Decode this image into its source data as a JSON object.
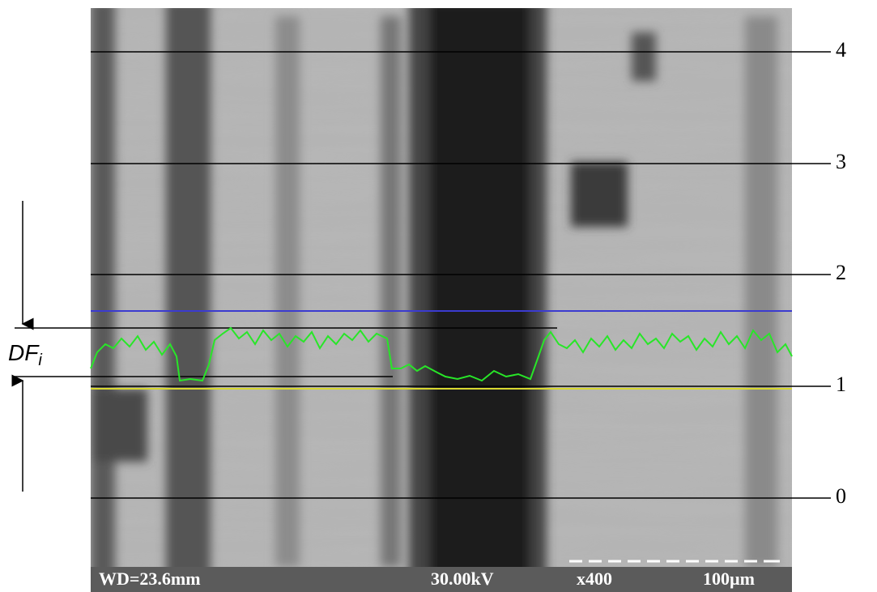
{
  "annotations": {
    "level_labels": [
      "0",
      "1",
      "2",
      "3",
      "4"
    ],
    "symbol": "DF",
    "subscript": "i"
  },
  "info_bar": {
    "working_distance": "WD=23.6mm",
    "voltage": "30.00kV",
    "magnification": "x400",
    "scale": "100µm"
  }
}
